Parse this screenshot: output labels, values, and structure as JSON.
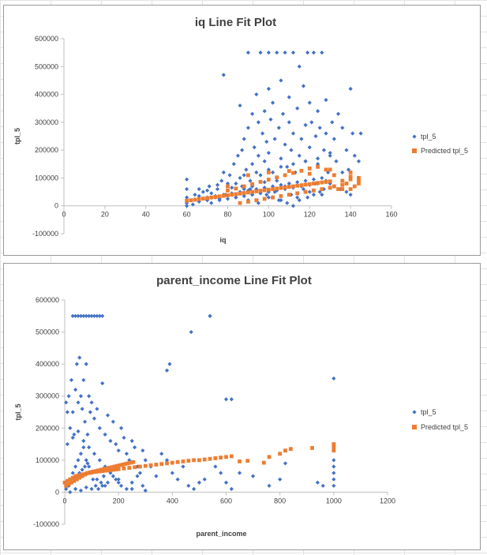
{
  "colors": {
    "actual": "#4472c4",
    "predicted": "#ed7d31",
    "axis": "#bfbfbf",
    "text": "#404040"
  },
  "chart_data": [
    {
      "type": "scatter",
      "title": "iq Line Fit  Plot",
      "xlabel": "iq",
      "ylabel": "tpl_5",
      "xlim": [
        0,
        160
      ],
      "ylim": [
        -100000,
        600000
      ],
      "xticks": [
        "0",
        "20",
        "40",
        "60",
        "80",
        "100",
        "120",
        "140",
        "160"
      ],
      "yticks": [
        "600000",
        "500000",
        "400000",
        "300000",
        "200000",
        "100000",
        "0",
        "-100000"
      ],
      "grid": false,
      "legend_position": "right",
      "series": [
        {
          "name": "tpl_5",
          "marker": "diamond",
          "x": [
            60,
            60,
            60,
            60,
            60,
            63,
            64,
            66,
            66,
            66,
            68,
            70,
            70,
            71,
            72,
            72,
            74,
            75,
            75,
            76,
            77,
            78,
            78,
            79,
            80,
            81,
            82,
            83,
            84,
            85,
            86,
            86,
            87,
            88,
            88,
            89,
            90,
            90,
            91,
            92,
            92,
            92,
            93,
            94,
            95,
            95,
            96,
            96,
            97,
            98,
            98,
            98,
            99,
            100,
            100,
            100,
            101,
            102,
            102,
            103,
            104,
            104,
            105,
            106,
            106,
            107,
            108,
            108,
            109,
            110,
            110,
            111,
            112,
            112,
            113,
            114,
            115,
            115,
            116,
            117,
            118,
            118,
            119,
            120,
            120,
            121,
            122,
            123,
            124,
            124,
            125,
            126,
            127,
            128,
            128,
            129,
            130,
            131,
            132,
            133,
            134,
            136,
            136,
            138,
            139,
            140,
            141,
            142,
            144,
            144,
            145,
            90,
            92,
            95,
            98,
            100,
            103,
            106,
            108,
            111,
            114,
            117,
            120,
            123,
            126,
            128,
            84,
            87,
            91,
            96,
            99,
            102,
            105,
            109,
            112,
            115,
            119,
            122,
            125,
            127,
            70,
            74,
            78,
            82,
            86,
            90,
            94,
            98,
            102,
            106,
            110,
            114,
            118,
            122,
            126,
            130,
            132,
            135,
            138,
            140,
            76,
            80,
            84,
            88,
            92,
            96,
            100,
            104,
            108,
            112,
            116,
            120,
            124,
            128,
            88,
            94,
            100,
            106,
            112,
            118,
            124,
            130
          ],
          "y": [
            0,
            10000,
            30000,
            60000,
            95000,
            5000,
            40000,
            15000,
            35000,
            60000,
            50000,
            20000,
            55000,
            70000,
            10000,
            45000,
            30000,
            75000,
            60000,
            25000,
            90000,
            470000,
            120000,
            40000,
            80000,
            110000,
            65000,
            150000,
            30000,
            180000,
            100000,
            360000,
            200000,
            60000,
            240000,
            130000,
            550000,
            280000,
            90000,
            330000,
            150000,
            70000,
            210000,
            400000,
            180000,
            300000,
            110000,
            550000,
            260000,
            340000,
            160000,
            85000,
            230000,
            420000,
            550000,
            190000,
            310000,
            120000,
            370000,
            240000,
            550000,
            90000,
            280000,
            450000,
            170000,
            330000,
            220000,
            550000,
            140000,
            300000,
            390000,
            200000,
            550000,
            260000,
            120000,
            350000,
            180000,
            500000,
            240000,
            430000,
            290000,
            160000,
            550000,
            370000,
            210000,
            300000,
            550000,
            250000,
            340000,
            150000,
            280000,
            550000,
            200000,
            260000,
            380000,
            120000,
            190000,
            300000,
            240000,
            160000,
            330000,
            120000,
            280000,
            200000,
            130000,
            420000,
            260000,
            180000,
            90000,
            160000,
            260000,
            20000,
            40000,
            10000,
            60000,
            30000,
            50000,
            20000,
            70000,
            40000,
            30000,
            60000,
            50000,
            80000,
            40000,
            90000,
            80000,
            70000,
            60000,
            50000,
            40000,
            30000,
            20000,
            10000,
            0,
            20000,
            30000,
            40000,
            50000,
            60000,
            30000,
            35000,
            40000,
            45000,
            50000,
            55000,
            60000,
            65000,
            70000,
            75000,
            80000,
            85000,
            90000,
            95000,
            100000,
            80000,
            70000,
            60000,
            50000,
            40000,
            20000,
            25000,
            30000,
            35000,
            40000,
            45000,
            50000,
            55000,
            60000,
            65000,
            70000,
            75000,
            80000,
            85000,
            110000,
            120000,
            130000,
            140000,
            150000,
            160000,
            170000,
            180000
          ]
        },
        {
          "name": "Predicted tpl_5",
          "marker": "square",
          "x": [
            60,
            62,
            64,
            66,
            68,
            70,
            72,
            74,
            76,
            78,
            80,
            82,
            84,
            86,
            88,
            90,
            92,
            94,
            96,
            98,
            100,
            102,
            104,
            106,
            108,
            110,
            112,
            114,
            116,
            118,
            120,
            122,
            124,
            126,
            128,
            130,
            132,
            134,
            136,
            138,
            140,
            142,
            144,
            80,
            84,
            88,
            92,
            96,
            100,
            104,
            108,
            112,
            116,
            120,
            124,
            128,
            132,
            136,
            140,
            144,
            86,
            90,
            94,
            98,
            102,
            106,
            110,
            114,
            118,
            122,
            126,
            130,
            136,
            140,
            144,
            80,
            90,
            100,
            110,
            120,
            130,
            140
          ],
          "y": [
            18000,
            20000,
            22000,
            24000,
            26000,
            28000,
            30000,
            32000,
            34000,
            36000,
            38000,
            40000,
            42000,
            44000,
            46000,
            48000,
            50000,
            52000,
            54000,
            56000,
            58000,
            60000,
            62000,
            64000,
            66000,
            68000,
            70000,
            72000,
            74000,
            76000,
            78000,
            80000,
            82000,
            84000,
            86000,
            88000,
            70000,
            60000,
            75000,
            80000,
            95000,
            70000,
            100000,
            55000,
            62000,
            70000,
            78000,
            86000,
            94000,
            102000,
            110000,
            118000,
            126000,
            134000,
            140000,
            130000,
            110000,
            90000,
            120000,
            90000,
            10000,
            15000,
            20000,
            25000,
            30000,
            35000,
            40000,
            45000,
            50000,
            55000,
            60000,
            65000,
            60000,
            60000,
            80000,
            70000,
            110000,
            120000,
            125000,
            115000,
            130000,
            105000
          ]
        }
      ]
    },
    {
      "type": "scatter",
      "title": "parent_income Line Fit  Plot",
      "xlabel": "parent_income",
      "ylabel": "tpl_5",
      "xlim": [
        0,
        1200
      ],
      "ylim": [
        -100000,
        600000
      ],
      "xticks": [
        "0",
        "200",
        "400",
        "600",
        "800",
        "1000",
        "1200"
      ],
      "yticks": [
        "600000",
        "500000",
        "400000",
        "300000",
        "200000",
        "100000",
        "0",
        "-100000"
      ],
      "grid": false,
      "legend_position": "right",
      "series": [
        {
          "name": "tpl_5",
          "marker": "diamond",
          "x": [
            30,
            40,
            50,
            60,
            70,
            80,
            90,
            100,
            110,
            120,
            130,
            140,
            5,
            10,
            15,
            20,
            25,
            30,
            35,
            40,
            45,
            50,
            55,
            60,
            65,
            70,
            75,
            80,
            85,
            90,
            95,
            100,
            110,
            120,
            130,
            140,
            150,
            160,
            170,
            180,
            190,
            200,
            210,
            220,
            230,
            240,
            250,
            260,
            270,
            280,
            290,
            300,
            320,
            340,
            360,
            380,
            400,
            420,
            440,
            460,
            480,
            500,
            520,
            540,
            560,
            580,
            600,
            620,
            650,
            700,
            760,
            800,
            820,
            1000,
            1000,
            1000,
            1000,
            1000,
            1000,
            5,
            15,
            25,
            35,
            45,
            55,
            65,
            75,
            85,
            95,
            105,
            115,
            125,
            135,
            145,
            10,
            20,
            30,
            40,
            50,
            60,
            70,
            80,
            90,
            100,
            120,
            140,
            160,
            180,
            200,
            20,
            40,
            60,
            80,
            100,
            150,
            200,
            250,
            300,
            10,
            30,
            50,
            70,
            90,
            110,
            130,
            150,
            170,
            190,
            210,
            230,
            250,
            270,
            290,
            380,
            390,
            470,
            540,
            600,
            620,
            940,
            960
          ],
          "y": [
            550000,
            550000,
            550000,
            550000,
            550000,
            550000,
            550000,
            550000,
            550000,
            550000,
            550000,
            550000,
            280000,
            250000,
            300000,
            200000,
            350000,
            250000,
            180000,
            320000,
            400000,
            280000,
            420000,
            300000,
            260000,
            350000,
            220000,
            400000,
            180000,
            300000,
            250000,
            280000,
            230000,
            260000,
            200000,
            340000,
            180000,
            240000,
            160000,
            220000,
            150000,
            130000,
            200000,
            170000,
            120000,
            100000,
            160000,
            140000,
            80000,
            60000,
            130000,
            100000,
            80000,
            50000,
            120000,
            100000,
            60000,
            40000,
            80000,
            20000,
            10000,
            30000,
            40000,
            550000,
            80000,
            60000,
            30000,
            290000,
            60000,
            50000,
            20000,
            40000,
            90000,
            355000,
            60000,
            80000,
            100000,
            40000,
            20000,
            10000,
            20000,
            30000,
            40000,
            50000,
            60000,
            70000,
            80000,
            90000,
            60000,
            40000,
            20000,
            10000,
            30000,
            50000,
            20000,
            40000,
            60000,
            80000,
            100000,
            120000,
            140000,
            100000,
            80000,
            60000,
            40000,
            20000,
            30000,
            50000,
            40000,
            0,
            10000,
            5000,
            15000,
            10000,
            20000,
            30000,
            10000,
            5000,
            150000,
            170000,
            190000,
            160000,
            140000,
            120000,
            100000,
            80000,
            60000,
            40000,
            20000,
            10000,
            30000,
            50000,
            20000,
            380000,
            400000,
            500000,
            550000,
            290000,
            10000,
            30000,
            20000
          ]
        },
        {
          "name": "Predicted tpl_5",
          "marker": "square",
          "x": [
            0,
            10,
            20,
            30,
            40,
            50,
            60,
            70,
            80,
            90,
            100,
            110,
            120,
            130,
            140,
            150,
            160,
            170,
            180,
            190,
            200,
            220,
            240,
            260,
            280,
            300,
            320,
            340,
            360,
            380,
            400,
            420,
            440,
            460,
            480,
            500,
            520,
            540,
            560,
            580,
            600,
            620,
            650,
            680,
            740,
            760,
            800,
            820,
            840,
            920,
            1000,
            1000,
            1000,
            1000,
            5,
            15,
            25,
            35,
            45,
            55,
            65,
            75,
            85,
            95,
            105,
            115,
            125,
            135,
            145,
            155,
            165,
            175,
            185,
            195,
            205,
            215,
            225,
            235,
            245,
            255
          ],
          "y": [
            30000,
            35000,
            40000,
            45000,
            50000,
            52000,
            54000,
            56000,
            58000,
            60000,
            62000,
            63000,
            64000,
            65000,
            66000,
            67000,
            68000,
            69000,
            70000,
            71000,
            72000,
            74000,
            76000,
            78000,
            80000,
            82000,
            84000,
            86000,
            88000,
            90000,
            92000,
            94000,
            96000,
            98000,
            100000,
            100000,
            102000,
            104000,
            106000,
            108000,
            110000,
            112000,
            96000,
            98000,
            92000,
            110000,
            120000,
            130000,
            135000,
            138000,
            140000,
            145000,
            150000,
            130000,
            20000,
            25000,
            30000,
            35000,
            40000,
            45000,
            50000,
            55000,
            60000,
            62000,
            64000,
            66000,
            68000,
            70000,
            72000,
            74000,
            76000,
            78000,
            80000,
            82000,
            84000,
            86000,
            88000,
            90000,
            92000,
            94000
          ]
        }
      ]
    }
  ]
}
